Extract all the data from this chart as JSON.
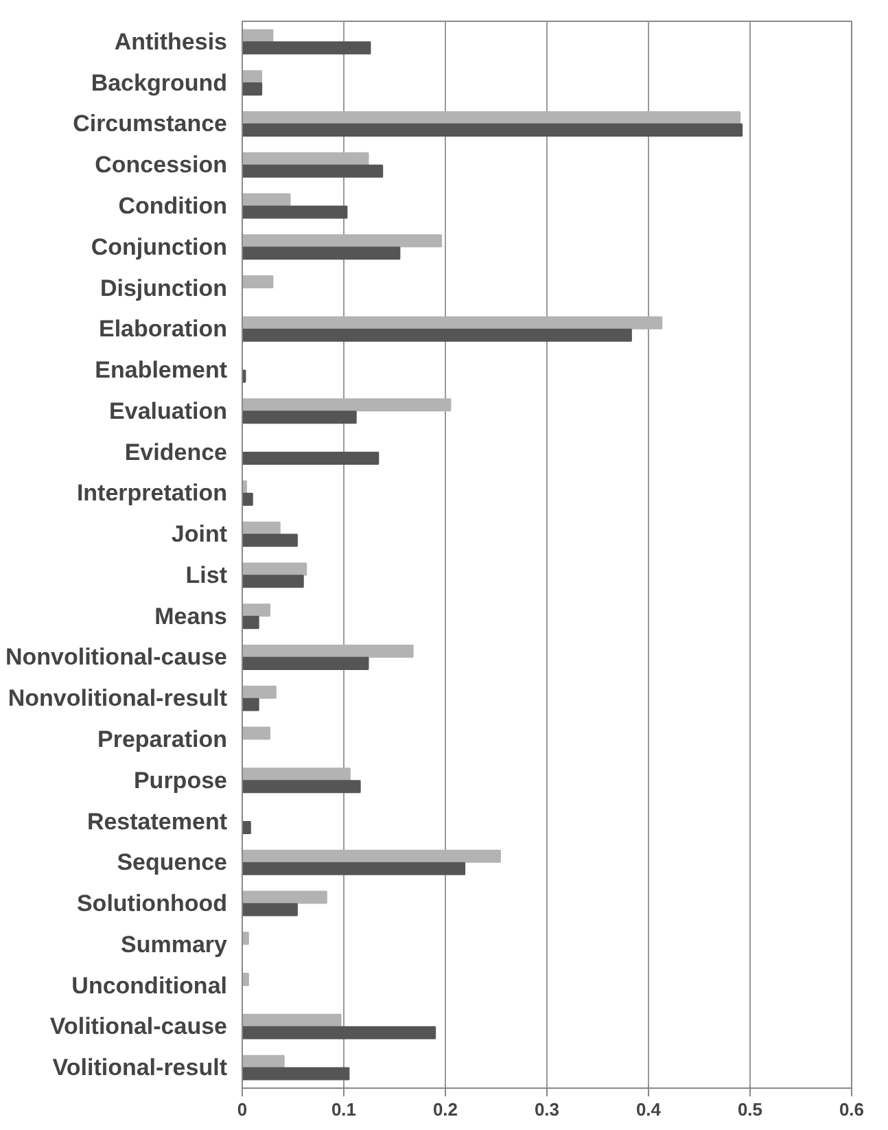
{
  "chart_data": {
    "type": "bar",
    "orientation": "horizontal",
    "categories": [
      "Antithesis",
      "Background",
      "Circumstance",
      "Concession",
      "Condition",
      "Conjunction",
      "Disjunction",
      "Elaboration",
      "Enablement",
      "Evaluation",
      "Evidence",
      "Interpretation",
      "Joint",
      "List",
      "Means",
      "Nonvolitional-cause",
      "Nonvolitional-result",
      "Preparation",
      "Purpose",
      "Restatement",
      "Sequence",
      "Solutionhood",
      "Summary",
      "Unconditional",
      "Volitional-cause",
      "Volitional-result"
    ],
    "series": [
      {
        "color": "#b3b3b3",
        "values": [
          0.03,
          0.019,
          0.49,
          0.124,
          0.047,
          0.196,
          0.03,
          0.413,
          null,
          0.205,
          null,
          0.004,
          0.037,
          0.063,
          0.027,
          0.168,
          0.033,
          0.027,
          0.106,
          null,
          0.254,
          0.083,
          0.006,
          0.006,
          0.097,
          0.041
        ]
      },
      {
        "color": "#555555",
        "values": [
          0.126,
          0.019,
          0.492,
          0.138,
          0.103,
          0.155,
          null,
          0.383,
          0.003,
          0.112,
          0.134,
          0.01,
          0.054,
          0.06,
          0.016,
          0.124,
          0.016,
          null,
          0.116,
          0.008,
          0.219,
          0.054,
          null,
          null,
          0.19,
          0.105
        ]
      }
    ],
    "xlim": [
      0,
      0.6
    ],
    "xticks": [
      0,
      0.1,
      0.2,
      0.3,
      0.4,
      0.5,
      0.6
    ],
    "grid": "x"
  }
}
